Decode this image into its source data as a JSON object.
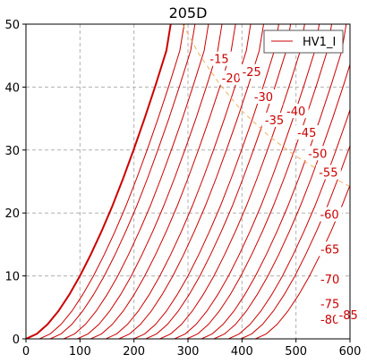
{
  "chart_data": {
    "type": "line",
    "title": "205D",
    "xlabel": "",
    "ylabel": "",
    "xlim": [
      0,
      600
    ],
    "ylim": [
      0,
      50
    ],
    "x_ticks": [
      "0",
      "100",
      "200",
      "300",
      "400",
      "500",
      "600"
    ],
    "y_ticks": [
      "0",
      "10",
      "20",
      "30",
      "40",
      "50"
    ],
    "grid": true,
    "legend": {
      "position": "top-right",
      "entries": [
        "HV1_I"
      ]
    },
    "colors": {
      "curve": "#cc0000",
      "grid": "#b0b0b0",
      "locus": "#f0b060"
    },
    "zero_bias_curve": {
      "x": [
        0,
        20,
        40,
        60,
        80,
        100,
        120,
        140,
        160,
        180,
        200,
        220,
        240,
        260,
        268
      ],
      "y": [
        0,
        0.8,
        2.3,
        4.4,
        7.0,
        10.0,
        13.4,
        17.1,
        21.1,
        25.5,
        30.2,
        35.1,
        40.3,
        45.8,
        50
      ]
    },
    "bias_curve_offsets": [
      25,
      45,
      70,
      95,
      120,
      148,
      172,
      200,
      222,
      248,
      275,
      298,
      325,
      348,
      375,
      398,
      425
    ],
    "curve_labels": [
      {
        "text": "-15",
        "x": 358,
        "y": 44.5
      },
      {
        "text": "-20",
        "x": 380,
        "y": 41.5
      },
      {
        "text": "-25",
        "x": 418,
        "y": 42.5
      },
      {
        "text": "-30",
        "x": 440,
        "y": 38.5
      },
      {
        "text": "-35",
        "x": 460,
        "y": 34.8
      },
      {
        "text": "-40",
        "x": 500,
        "y": 36.2
      },
      {
        "text": "-45",
        "x": 520,
        "y": 32.8
      },
      {
        "text": "-50",
        "x": 540,
        "y": 29.5
      },
      {
        "text": "-55",
        "x": 560,
        "y": 26.5
      },
      {
        "text": "-60",
        "x": 562,
        "y": 19.8
      },
      {
        "text": "-65",
        "x": 563,
        "y": 14.3
      },
      {
        "text": "-70",
        "x": 563,
        "y": 9.5
      },
      {
        "text": "-75",
        "x": 563,
        "y": 5.6
      },
      {
        "text": "-80",
        "x": 563,
        "y": 3.1
      },
      {
        "text": "-85",
        "x": 597,
        "y": 3.8
      }
    ],
    "max_dissipation_locus": {
      "x": [
        290,
        320,
        360,
        400,
        450,
        500,
        550,
        600
      ],
      "y": [
        50,
        45.3,
        40.3,
        36.2,
        32.2,
        29.0,
        26.4,
        24.2
      ]
    }
  }
}
